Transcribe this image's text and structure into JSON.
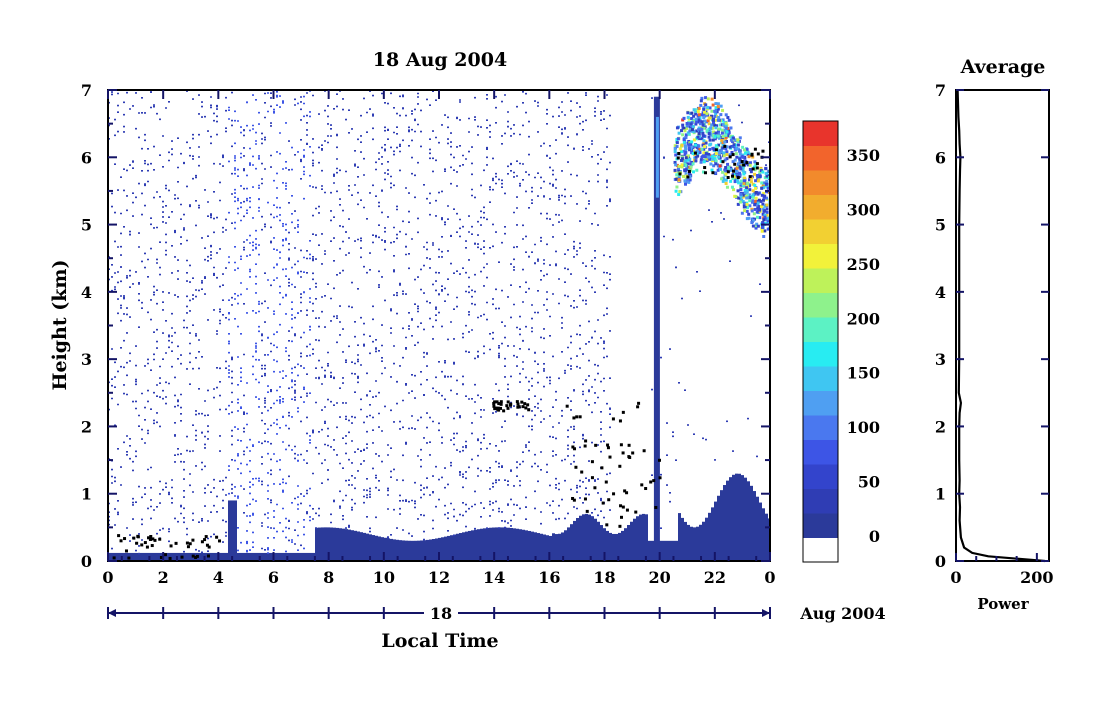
{
  "chart_data": [
    {
      "type": "heatmap",
      "title": "18 Aug 2004",
      "xlabel": "Local Time",
      "ylabel": "Height (km)",
      "date_axis": {
        "day_label": "18",
        "month_label": "Aug 2004"
      },
      "x_ticks": [
        "0",
        "2",
        "4",
        "6",
        "8",
        "10",
        "12",
        "14",
        "16",
        "18",
        "20",
        "22",
        "0"
      ],
      "y_ticks": [
        "0",
        "1",
        "2",
        "3",
        "4",
        "5",
        "6",
        "7"
      ],
      "xlim": [
        0,
        24
      ],
      "ylim": [
        0,
        7
      ],
      "colorbar": {
        "ticks": [
          "350",
          "300",
          "250",
          "200",
          "150",
          "100",
          "50",
          "0"
        ],
        "range": [
          0,
          380
        ],
        "colors": [
          "#ffffff",
          "#2b3a9a",
          "#2f3db4",
          "#3344cc",
          "#3d55e6",
          "#4a78ef",
          "#4f9ff2",
          "#3fc6f2",
          "#28ecf2",
          "#5cf2c4",
          "#8ef28c",
          "#bef25a",
          "#f2f23a",
          "#f2d032",
          "#f2ad2e",
          "#f28a2c",
          "#f2642c",
          "#e8342c"
        ]
      },
      "features": [
        {
          "name": "surface echo layer",
          "x": [
            0,
            24
          ],
          "height_km": [
            0,
            0.6
          ]
        },
        {
          "name": "layer near 2.3 km",
          "x": [
            13.9,
            15.2
          ],
          "height_km": [
            2.2,
            2.4
          ]
        },
        {
          "name": "strong echo layer",
          "x": [
            20.5,
            24
          ],
          "height_km": [
            5.0,
            6.4
          ],
          "peak_power": 380
        }
      ]
    },
    {
      "type": "line",
      "title": "Average",
      "xlabel": "Power",
      "x_ticks": [
        "0",
        "200"
      ],
      "y_ticks": [
        "0",
        "1",
        "2",
        "3",
        "4",
        "5",
        "6",
        "7"
      ],
      "xlim": [
        0,
        230
      ],
      "ylim": [
        0,
        7
      ],
      "series": [
        {
          "x": [
            220,
            160,
            80,
            40,
            20,
            12,
            9,
            10,
            8,
            9,
            8,
            8,
            9,
            12,
            7,
            8,
            8,
            8,
            8,
            8,
            9,
            10,
            11,
            9,
            8,
            6,
            4
          ],
          "y": [
            0.0,
            0.03,
            0.07,
            0.12,
            0.2,
            0.35,
            0.6,
            0.8,
            1.0,
            1.2,
            1.5,
            2.0,
            2.2,
            2.35,
            2.5,
            3.0,
            3.5,
            4.0,
            4.5,
            5.0,
            5.5,
            5.8,
            6.0,
            6.2,
            6.4,
            6.6,
            7.0
          ]
        }
      ]
    }
  ]
}
